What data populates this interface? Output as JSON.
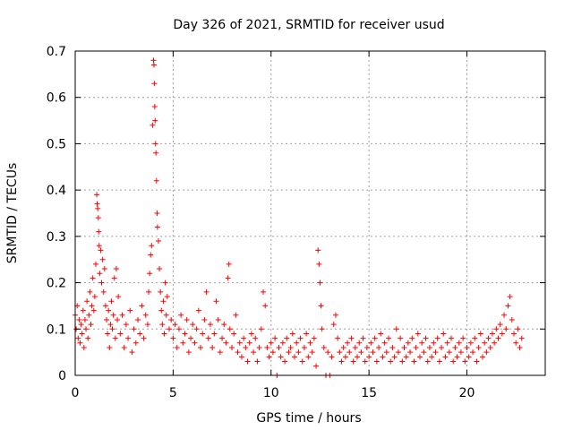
{
  "chart_data": {
    "type": "scatter",
    "title": "Day 326 of 2021, SRMTID for receiver usud",
    "xlabel": "GPS time / hours",
    "ylabel": "SRMTID / TECUs",
    "xlim": [
      0,
      24
    ],
    "ylim": [
      0,
      0.7
    ],
    "x_ticks": [
      0,
      5,
      10,
      15,
      20
    ],
    "x_tick_labels": [
      "0",
      "5",
      "10",
      "15",
      "20"
    ],
    "y_ticks": [
      0,
      0.1,
      0.2,
      0.3,
      0.4,
      0.5,
      0.6,
      0.7
    ],
    "y_tick_labels": [
      "0",
      "0.1",
      "0.2",
      "0.3",
      "0.4",
      "0.5",
      "0.6",
      "0.7"
    ],
    "grid": true,
    "marker": "+",
    "marker_color": "#ff0000",
    "series": [
      {
        "name": "SRMTID",
        "points": [
          [
            0.0,
            0.13
          ],
          [
            0.05,
            0.1
          ],
          [
            0.1,
            0.15
          ],
          [
            0.15,
            0.08
          ],
          [
            0.2,
            0.12
          ],
          [
            0.25,
            0.07
          ],
          [
            0.3,
            0.11
          ],
          [
            0.35,
            0.09
          ],
          [
            0.4,
            0.14
          ],
          [
            0.45,
            0.06
          ],
          [
            0.5,
            0.12
          ],
          [
            0.55,
            0.1
          ],
          [
            0.6,
            0.16
          ],
          [
            0.65,
            0.08
          ],
          [
            0.7,
            0.13
          ],
          [
            0.75,
            0.18
          ],
          [
            0.8,
            0.11
          ],
          [
            0.85,
            0.15
          ],
          [
            0.9,
            0.21
          ],
          [
            0.95,
            0.14
          ],
          [
            1.0,
            0.17
          ],
          [
            1.05,
            0.24
          ],
          [
            1.1,
            0.39
          ],
          [
            1.12,
            0.37
          ],
          [
            1.15,
            0.36
          ],
          [
            1.18,
            0.34
          ],
          [
            1.2,
            0.31
          ],
          [
            1.22,
            0.28
          ],
          [
            1.25,
            0.22
          ],
          [
            1.3,
            0.27
          ],
          [
            1.35,
            0.2
          ],
          [
            1.4,
            0.25
          ],
          [
            1.45,
            0.18
          ],
          [
            1.5,
            0.23
          ],
          [
            1.55,
            0.15
          ],
          [
            1.6,
            0.12
          ],
          [
            1.65,
            0.09
          ],
          [
            1.7,
            0.14
          ],
          [
            1.75,
            0.06
          ],
          [
            1.8,
            0.11
          ],
          [
            1.85,
            0.16
          ],
          [
            1.9,
            0.1
          ],
          [
            1.95,
            0.13
          ],
          [
            2.0,
            0.21
          ],
          [
            2.05,
            0.08
          ],
          [
            2.1,
            0.23
          ],
          [
            2.15,
            0.12
          ],
          [
            2.2,
            0.17
          ],
          [
            2.3,
            0.09
          ],
          [
            2.4,
            0.13
          ],
          [
            2.5,
            0.06
          ],
          [
            2.6,
            0.11
          ],
          [
            2.7,
            0.08
          ],
          [
            2.8,
            0.14
          ],
          [
            2.9,
            0.05
          ],
          [
            3.0,
            0.1
          ],
          [
            3.1,
            0.07
          ],
          [
            3.2,
            0.12
          ],
          [
            3.3,
            0.09
          ],
          [
            3.4,
            0.15
          ],
          [
            3.5,
            0.08
          ],
          [
            3.6,
            0.13
          ],
          [
            3.7,
            0.11
          ],
          [
            3.75,
            0.18
          ],
          [
            3.8,
            0.22
          ],
          [
            3.85,
            0.26
          ],
          [
            3.9,
            0.28
          ],
          [
            3.95,
            0.54
          ],
          [
            4.0,
            0.68
          ],
          [
            4.02,
            0.67
          ],
          [
            4.04,
            0.63
          ],
          [
            4.06,
            0.58
          ],
          [
            4.08,
            0.55
          ],
          [
            4.1,
            0.5
          ],
          [
            4.12,
            0.48
          ],
          [
            4.15,
            0.42
          ],
          [
            4.18,
            0.35
          ],
          [
            4.2,
            0.32
          ],
          [
            4.25,
            0.29
          ],
          [
            4.3,
            0.23
          ],
          [
            4.35,
            0.18
          ],
          [
            4.4,
            0.14
          ],
          [
            4.45,
            0.11
          ],
          [
            4.5,
            0.16
          ],
          [
            4.55,
            0.09
          ],
          [
            4.6,
            0.2
          ],
          [
            4.65,
            0.13
          ],
          [
            4.7,
            0.17
          ],
          [
            4.8,
            0.1
          ],
          [
            4.9,
            0.12
          ],
          [
            5.0,
            0.08
          ],
          [
            5.1,
            0.11
          ],
          [
            5.2,
            0.06
          ],
          [
            5.3,
            0.1
          ],
          [
            5.4,
            0.13
          ],
          [
            5.5,
            0.07
          ],
          [
            5.6,
            0.09
          ],
          [
            5.7,
            0.12
          ],
          [
            5.8,
            0.05
          ],
          [
            5.9,
            0.08
          ],
          [
            6.0,
            0.11
          ],
          [
            6.1,
            0.07
          ],
          [
            6.2,
            0.1
          ],
          [
            6.3,
            0.14
          ],
          [
            6.4,
            0.06
          ],
          [
            6.5,
            0.09
          ],
          [
            6.6,
            0.12
          ],
          [
            6.7,
            0.18
          ],
          [
            6.8,
            0.08
          ],
          [
            6.9,
            0.11
          ],
          [
            7.0,
            0.06
          ],
          [
            7.1,
            0.09
          ],
          [
            7.2,
            0.16
          ],
          [
            7.3,
            0.12
          ],
          [
            7.4,
            0.05
          ],
          [
            7.5,
            0.08
          ],
          [
            7.6,
            0.11
          ],
          [
            7.7,
            0.07
          ],
          [
            7.8,
            0.21
          ],
          [
            7.85,
            0.24
          ],
          [
            7.9,
            0.1
          ],
          [
            8.0,
            0.06
          ],
          [
            8.1,
            0.09
          ],
          [
            8.2,
            0.13
          ],
          [
            8.3,
            0.05
          ],
          [
            8.4,
            0.07
          ],
          [
            8.5,
            0.04
          ],
          [
            8.6,
            0.08
          ],
          [
            8.7,
            0.06
          ],
          [
            8.8,
            0.03
          ],
          [
            8.9,
            0.07
          ],
          [
            9.0,
            0.09
          ],
          [
            9.1,
            0.05
          ],
          [
            9.2,
            0.08
          ],
          [
            9.3,
            0.03
          ],
          [
            9.4,
            0.06
          ],
          [
            9.5,
            0.1
          ],
          [
            9.6,
            0.18
          ],
          [
            9.7,
            0.15
          ],
          [
            9.8,
            0.06
          ],
          [
            9.9,
            0.04
          ],
          [
            10.0,
            0.07
          ],
          [
            10.1,
            0.05
          ],
          [
            10.2,
            0.08
          ],
          [
            10.3,
            0.0
          ],
          [
            10.4,
            0.06
          ],
          [
            10.5,
            0.04
          ],
          [
            10.6,
            0.07
          ],
          [
            10.7,
            0.03
          ],
          [
            10.8,
            0.08
          ],
          [
            10.9,
            0.05
          ],
          [
            11.0,
            0.06
          ],
          [
            11.1,
            0.09
          ],
          [
            11.2,
            0.04
          ],
          [
            11.3,
            0.07
          ],
          [
            11.4,
            0.05
          ],
          [
            11.5,
            0.08
          ],
          [
            11.6,
            0.03
          ],
          [
            11.7,
            0.06
          ],
          [
            11.8,
            0.09
          ],
          [
            11.9,
            0.04
          ],
          [
            12.0,
            0.07
          ],
          [
            12.1,
            0.05
          ],
          [
            12.2,
            0.08
          ],
          [
            12.3,
            0.02
          ],
          [
            12.4,
            0.27
          ],
          [
            12.45,
            0.24
          ],
          [
            12.5,
            0.2
          ],
          [
            12.55,
            0.15
          ],
          [
            12.6,
            0.1
          ],
          [
            12.7,
            0.06
          ],
          [
            12.8,
            0.0
          ],
          [
            12.9,
            0.05
          ],
          [
            13.0,
            0.0
          ],
          [
            13.1,
            0.04
          ],
          [
            13.2,
            0.11
          ],
          [
            13.3,
            0.13
          ],
          [
            13.4,
            0.08
          ],
          [
            13.5,
            0.05
          ],
          [
            13.6,
            0.03
          ],
          [
            13.7,
            0.06
          ],
          [
            13.8,
            0.04
          ],
          [
            13.9,
            0.07
          ],
          [
            14.0,
            0.05
          ],
          [
            14.1,
            0.08
          ],
          [
            14.2,
            0.03
          ],
          [
            14.3,
            0.06
          ],
          [
            14.4,
            0.04
          ],
          [
            14.5,
            0.07
          ],
          [
            14.6,
            0.05
          ],
          [
            14.7,
            0.08
          ],
          [
            14.8,
            0.03
          ],
          [
            14.9,
            0.06
          ],
          [
            15.0,
            0.04
          ],
          [
            15.1,
            0.07
          ],
          [
            15.2,
            0.05
          ],
          [
            15.3,
            0.08
          ],
          [
            15.4,
            0.03
          ],
          [
            15.5,
            0.06
          ],
          [
            15.6,
            0.09
          ],
          [
            15.7,
            0.04
          ],
          [
            15.8,
            0.07
          ],
          [
            15.9,
            0.05
          ],
          [
            16.0,
            0.08
          ],
          [
            16.1,
            0.03
          ],
          [
            16.2,
            0.06
          ],
          [
            16.3,
            0.04
          ],
          [
            16.4,
            0.1
          ],
          [
            16.5,
            0.05
          ],
          [
            16.6,
            0.08
          ],
          [
            16.7,
            0.03
          ],
          [
            16.8,
            0.06
          ],
          [
            16.9,
            0.04
          ],
          [
            17.0,
            0.07
          ],
          [
            17.1,
            0.05
          ],
          [
            17.2,
            0.08
          ],
          [
            17.3,
            0.03
          ],
          [
            17.4,
            0.06
          ],
          [
            17.5,
            0.09
          ],
          [
            17.6,
            0.04
          ],
          [
            17.7,
            0.07
          ],
          [
            17.8,
            0.05
          ],
          [
            17.9,
            0.08
          ],
          [
            18.0,
            0.03
          ],
          [
            18.1,
            0.06
          ],
          [
            18.2,
            0.04
          ],
          [
            18.3,
            0.07
          ],
          [
            18.4,
            0.05
          ],
          [
            18.5,
            0.08
          ],
          [
            18.6,
            0.03
          ],
          [
            18.7,
            0.06
          ],
          [
            18.8,
            0.09
          ],
          [
            18.9,
            0.04
          ],
          [
            19.0,
            0.07
          ],
          [
            19.1,
            0.05
          ],
          [
            19.2,
            0.08
          ],
          [
            19.3,
            0.03
          ],
          [
            19.4,
            0.06
          ],
          [
            19.5,
            0.04
          ],
          [
            19.6,
            0.07
          ],
          [
            19.7,
            0.05
          ],
          [
            19.8,
            0.08
          ],
          [
            19.9,
            0.03
          ],
          [
            20.0,
            0.06
          ],
          [
            20.1,
            0.04
          ],
          [
            20.2,
            0.07
          ],
          [
            20.3,
            0.05
          ],
          [
            20.4,
            0.08
          ],
          [
            20.5,
            0.03
          ],
          [
            20.6,
            0.06
          ],
          [
            20.7,
            0.09
          ],
          [
            20.8,
            0.04
          ],
          [
            20.9,
            0.07
          ],
          [
            21.0,
            0.05
          ],
          [
            21.1,
            0.08
          ],
          [
            21.2,
            0.06
          ],
          [
            21.3,
            0.09
          ],
          [
            21.4,
            0.07
          ],
          [
            21.5,
            0.1
          ],
          [
            21.6,
            0.08
          ],
          [
            21.7,
            0.11
          ],
          [
            21.8,
            0.09
          ],
          [
            21.9,
            0.13
          ],
          [
            22.0,
            0.1
          ],
          [
            22.1,
            0.15
          ],
          [
            22.2,
            0.17
          ],
          [
            22.3,
            0.12
          ],
          [
            22.4,
            0.09
          ],
          [
            22.5,
            0.07
          ],
          [
            22.6,
            0.1
          ],
          [
            22.7,
            0.06
          ],
          [
            22.8,
            0.08
          ]
        ]
      }
    ]
  }
}
